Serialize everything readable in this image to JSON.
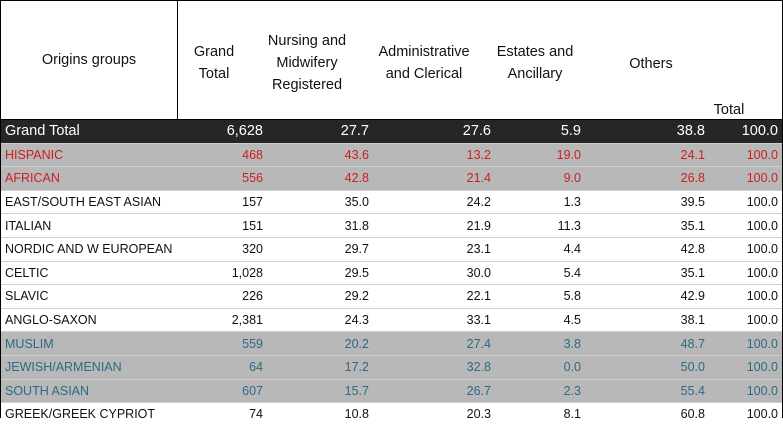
{
  "chart_data": {
    "type": "table",
    "columns": [
      "Origins groups",
      "Grand Total",
      "Nursing and Midwifery Registered",
      "Administrative and Clerical",
      "Estates and Ancillary",
      "Others",
      "Total"
    ],
    "rows": [
      {
        "group": "Grand Total",
        "grand_total": "6,628",
        "nursing": "27.7",
        "admin": "27.6",
        "estates": "5.9",
        "others": "38.8",
        "total": "100.0",
        "style": "grand"
      },
      {
        "group": "HISPANIC",
        "grand_total": "468",
        "nursing": "43.6",
        "admin": "13.2",
        "estates": "19.0",
        "others": "24.1",
        "total": "100.0",
        "style": "red"
      },
      {
        "group": "AFRICAN",
        "grand_total": "556",
        "nursing": "42.8",
        "admin": "21.4",
        "estates": "9.0",
        "others": "26.8",
        "total": "100.0",
        "style": "red"
      },
      {
        "group": "EAST/SOUTH EAST ASIAN",
        "grand_total": "157",
        "nursing": "35.0",
        "admin": "24.2",
        "estates": "1.3",
        "others": "39.5",
        "total": "100.0",
        "style": "plain"
      },
      {
        "group": "ITALIAN",
        "grand_total": "151",
        "nursing": "31.8",
        "admin": "21.9",
        "estates": "11.3",
        "others": "35.1",
        "total": "100.0",
        "style": "plain"
      },
      {
        "group": "NORDIC AND W EUROPEAN",
        "grand_total": "320",
        "nursing": "29.7",
        "admin": "23.1",
        "estates": "4.4",
        "others": "42.8",
        "total": "100.0",
        "style": "plain"
      },
      {
        "group": "CELTIC",
        "grand_total": "1,028",
        "nursing": "29.5",
        "admin": "30.0",
        "estates": "5.4",
        "others": "35.1",
        "total": "100.0",
        "style": "plain"
      },
      {
        "group": "SLAVIC",
        "grand_total": "226",
        "nursing": "29.2",
        "admin": "22.1",
        "estates": "5.8",
        "others": "42.9",
        "total": "100.0",
        "style": "plain"
      },
      {
        "group": "ANGLO-SAXON",
        "grand_total": "2,381",
        "nursing": "24.3",
        "admin": "33.1",
        "estates": "4.5",
        "others": "38.1",
        "total": "100.0",
        "style": "plain"
      },
      {
        "group": "MUSLIM",
        "grand_total": "559",
        "nursing": "20.2",
        "admin": "27.4",
        "estates": "3.8",
        "others": "48.7",
        "total": "100.0",
        "style": "teal"
      },
      {
        "group": "JEWISH/ARMENIAN",
        "grand_total": "64",
        "nursing": "17.2",
        "admin": "32.8",
        "estates": "0.0",
        "others": "50.0",
        "total": "100.0",
        "style": "teal"
      },
      {
        "group": "SOUTH ASIAN",
        "grand_total": "607",
        "nursing": "15.7",
        "admin": "26.7",
        "estates": "2.3",
        "others": "55.4",
        "total": "100.0",
        "style": "teal"
      },
      {
        "group": "GREEK/GREEK CYPRIOT",
        "grand_total": "74",
        "nursing": "10.8",
        "admin": "20.3",
        "estates": "8.1",
        "others": "60.8",
        "total": "100.0",
        "style": "plain"
      }
    ]
  },
  "colors": {
    "red_text": "#cc1f1f",
    "teal_text": "#2d6a83",
    "grey_band": "#b8b8b8",
    "grand_band": "#262626"
  },
  "header": {
    "origins": "Origins groups",
    "grand_total_line1": "Grand",
    "grand_total_line2": "Total",
    "nursing_line1": "Nursing and",
    "nursing_line2": "Midwifery",
    "nursing_line3": "Registered",
    "admin_line1": "Administrative",
    "admin_line2": "and Clerical",
    "estates_line1": "Estates and",
    "estates_line2": "Ancillary",
    "others": "Others",
    "total": "Total"
  }
}
